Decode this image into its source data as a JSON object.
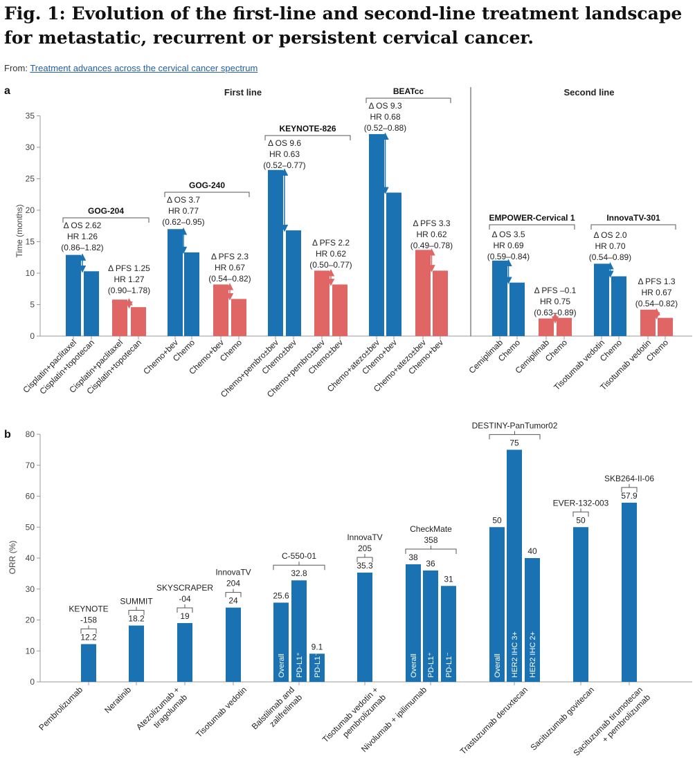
{
  "figure": {
    "title": "Fig. 1: Evolution of the first-line and second-line treatment landscape for metastatic, recurrent or persistent cervical cancer.",
    "source_prefix": "From: ",
    "source_link": "Treatment advances across the cervical cancer spectrum"
  },
  "colors": {
    "blue": "#1a72b3",
    "red": "#e06666"
  },
  "chart_data": [
    {
      "panel": "a",
      "type": "bar",
      "ylabel": "Time (months)",
      "ylim": [
        0,
        35
      ],
      "yticks": [
        0,
        5,
        10,
        15,
        20,
        25,
        30,
        35
      ],
      "sections": [
        "First line",
        "Second line"
      ],
      "bars": [
        {
          "label": "Cisplatin+paclitaxel",
          "value": 12.9,
          "color": "blue"
        },
        {
          "label": "Cisplatin+topotecan",
          "value": 10.3,
          "color": "blue"
        },
        {
          "label": "Cisplatin+paclitaxel",
          "value": 5.8,
          "color": "red"
        },
        {
          "label": "Cisplatin+topotecan",
          "value": 4.6,
          "color": "red"
        },
        {
          "label": "Chemo+bev",
          "value": 17.0,
          "color": "blue"
        },
        {
          "label": "Chemo",
          "value": 13.3,
          "color": "blue"
        },
        {
          "label": "Chemo+bev",
          "value": 8.2,
          "color": "red"
        },
        {
          "label": "Chemo",
          "value": 5.9,
          "color": "red"
        },
        {
          "label": "Chemo+pembro±bev",
          "value": 26.4,
          "color": "blue"
        },
        {
          "label": "Chemo±bev",
          "value": 16.8,
          "color": "blue"
        },
        {
          "label": "Chemo+pembro±bev",
          "value": 10.4,
          "color": "red"
        },
        {
          "label": "Chemo±bev",
          "value": 8.2,
          "color": "red"
        },
        {
          "label": "Chemo+atezo±bev",
          "value": 32.1,
          "color": "blue"
        },
        {
          "label": "Chemo+bev",
          "value": 22.8,
          "color": "blue"
        },
        {
          "label": "Chemo+atezo±bev",
          "value": 13.7,
          "color": "red"
        },
        {
          "label": "Chemo+bev",
          "value": 10.4,
          "color": "red"
        },
        {
          "label": "Cemiplimab",
          "value": 12.0,
          "color": "blue"
        },
        {
          "label": "Chemo",
          "value": 8.5,
          "color": "blue"
        },
        {
          "label": "Cemiplimab",
          "value": 2.8,
          "color": "red"
        },
        {
          "label": "Chemo",
          "value": 2.9,
          "color": "red"
        },
        {
          "label": "Tisotumab vedotin",
          "value": 11.5,
          "color": "blue"
        },
        {
          "label": "Chemo",
          "value": 9.5,
          "color": "blue"
        },
        {
          "label": "Tisotumab vedotin",
          "value": 4.2,
          "color": "red"
        },
        {
          "label": "Chemo",
          "value": 2.9,
          "color": "red"
        }
      ],
      "trials": [
        {
          "name": "GOG-204",
          "bars": [
            0,
            3
          ]
        },
        {
          "name": "GOG-240",
          "bars": [
            4,
            7
          ]
        },
        {
          "name": "KEYNOTE-826",
          "bars": [
            8,
            11
          ]
        },
        {
          "name": "BEATcc",
          "bars": [
            12,
            15
          ]
        },
        {
          "name": "EMPOWER-Cervical 1",
          "bars": [
            16,
            19
          ]
        },
        {
          "name": "InnovaTV-301",
          "bars": [
            20,
            23
          ]
        }
      ],
      "annotations": [
        {
          "bars": [
            0,
            1
          ],
          "color": "blue",
          "lines": [
            "Δ OS 2.62",
            "HR 1.26",
            "(0.86–1.82)"
          ]
        },
        {
          "bars": [
            2,
            3
          ],
          "color": "red",
          "lines": [
            "Δ PFS 1.25",
            "HR 1.27",
            "(0.90–1.78)"
          ]
        },
        {
          "bars": [
            4,
            5
          ],
          "color": "blue",
          "lines": [
            "Δ OS 3.7",
            "HR 0.77",
            "(0.62–0.95)"
          ]
        },
        {
          "bars": [
            6,
            7
          ],
          "color": "red",
          "lines": [
            "Δ PFS 2.3",
            "HR 0.67",
            "(0.54–0.82)"
          ]
        },
        {
          "bars": [
            8,
            9
          ],
          "color": "blue",
          "lines": [
            "Δ OS 9.6",
            "HR 0.63",
            "(0.52–0.77)"
          ]
        },
        {
          "bars": [
            10,
            11
          ],
          "color": "red",
          "lines": [
            "Δ PFS 2.2",
            "HR 0.62",
            "(0.50–0.77)"
          ]
        },
        {
          "bars": [
            12,
            13
          ],
          "color": "blue",
          "lines": [
            "Δ OS 9.3",
            "HR 0.68",
            "(0.52–0.88)"
          ]
        },
        {
          "bars": [
            14,
            15
          ],
          "color": "red",
          "lines": [
            "Δ PFS 3.3",
            "HR 0.62",
            "(0.49–0.78)"
          ]
        },
        {
          "bars": [
            16,
            17
          ],
          "color": "blue",
          "lines": [
            "Δ OS 3.5",
            "HR 0.69",
            "(0.59–0.84)"
          ]
        },
        {
          "bars": [
            18,
            19
          ],
          "color": "red",
          "lines": [
            "Δ PFS –0.1",
            "HR 0.75",
            "(0.63–0.89)"
          ]
        },
        {
          "bars": [
            20,
            21
          ],
          "color": "blue",
          "lines": [
            "Δ OS 2.0",
            "HR 0.70",
            "(0.54–0.89)"
          ]
        },
        {
          "bars": [
            22,
            23
          ],
          "color": "red",
          "lines": [
            "Δ PFS 1.3",
            "HR 0.67",
            "(0.54–0.82)"
          ]
        }
      ]
    },
    {
      "panel": "b",
      "type": "bar",
      "ylabel": "ORR (%)",
      "ylim": [
        0,
        80
      ],
      "yticks": [
        0,
        10,
        20,
        30,
        40,
        50,
        60,
        70,
        80
      ],
      "groups": [
        {
          "label": "Pembrolizumab",
          "trial": [
            "KEYNOTE",
            "-158"
          ],
          "bars": [
            {
              "value": 12.2,
              "text": "12.2"
            }
          ]
        },
        {
          "label": "Neratinib",
          "trial": [
            "SUMMIT"
          ],
          "bars": [
            {
              "value": 18.2,
              "text": "18.2"
            }
          ]
        },
        {
          "label": "Atezolizumab + tiragolumab",
          "trial": [
            "SKYSCRAPER",
            "-04"
          ],
          "bars": [
            {
              "value": 19,
              "text": "19"
            }
          ]
        },
        {
          "label": "Tisotumab vedotin",
          "trial": [
            "InnovaTV",
            "204"
          ],
          "bars": [
            {
              "value": 24,
              "text": "24"
            }
          ]
        },
        {
          "label": "Balstilimab and zalifrelimab",
          "trial": [
            "C-550-01"
          ],
          "bars": [
            {
              "value": 25.6,
              "text": "25.6",
              "sub": "Overall"
            },
            {
              "value": 32.8,
              "text": "32.8",
              "sub": "PD-L1⁺"
            },
            {
              "value": 9.1,
              "text": "9.1",
              "sub": "PD-L1⁻"
            }
          ]
        },
        {
          "label": "Tisotumab vedotin + pembrolizumab",
          "trial": [
            "InnovaTV",
            "205"
          ],
          "bars": [
            {
              "value": 35.3,
              "text": "35.3"
            }
          ]
        },
        {
          "label": "Nivolumab + ipilimumab",
          "trial": [
            "CheckMate",
            "358"
          ],
          "bars": [
            {
              "value": 38,
              "text": "38",
              "sub": "Overall"
            },
            {
              "value": 36,
              "text": "36",
              "sub": "PD-L1⁺"
            },
            {
              "value": 31,
              "text": "31",
              "sub": "PD-L1⁻"
            }
          ]
        },
        {
          "label": "Trastuzumab deruxtecan",
          "trial": [
            "DESTINY-PanTumor02"
          ],
          "bars": [
            {
              "value": 50,
              "text": "50",
              "sub": "Overall"
            },
            {
              "value": 75,
              "text": "75",
              "sub": "HER2 IHC 3+"
            },
            {
              "value": 40,
              "text": "40",
              "sub": "HER2 IHC 2+"
            }
          ]
        },
        {
          "label": "Sacituzumab govitecan",
          "trial": [
            "EVER-132-003"
          ],
          "bars": [
            {
              "value": 50,
              "text": "50"
            }
          ]
        },
        {
          "label": "Sacituzumab tirumotecan + pembrolizumab",
          "trial": [
            "SKB264-II-06"
          ],
          "bars": [
            {
              "value": 57.9,
              "text": "57.9"
            }
          ]
        }
      ]
    }
  ]
}
